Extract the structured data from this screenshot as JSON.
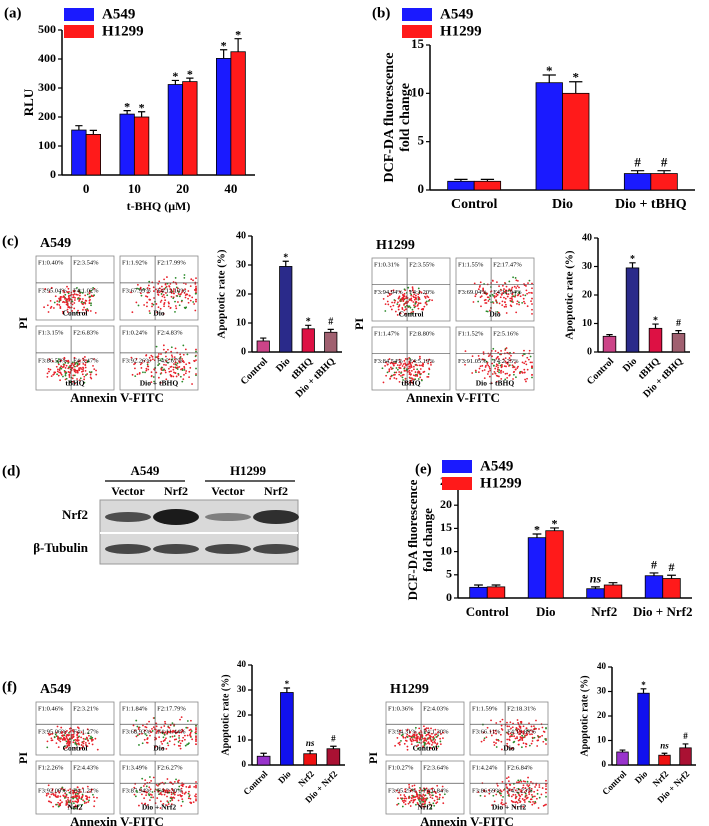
{
  "panel_labels": [
    "(a)",
    "(b)",
    "(c)",
    "(d)",
    "(e)",
    "(f)"
  ],
  "chart_data": [
    {
      "type": "bar",
      "ylabel": "RLU",
      "xlabel": "t-BHQ (μM)",
      "categories": [
        "0",
        "10",
        "20",
        "40"
      ],
      "series": [
        {
          "name": "A549",
          "color": "#1a1aff",
          "values": [
            155,
            210,
            312,
            402
          ],
          "errors": [
            15,
            12,
            14,
            30
          ],
          "marks": [
            null,
            "*",
            "*",
            "*"
          ]
        },
        {
          "name": "H1299",
          "color": "#ff1a1a",
          "values": [
            140,
            200,
            322,
            425
          ],
          "errors": [
            14,
            18,
            12,
            45
          ],
          "marks": [
            null,
            "*",
            "*",
            "*"
          ]
        }
      ],
      "ylim": [
        0,
        500
      ],
      "yticks": [
        0,
        100,
        200,
        300,
        400,
        500
      ],
      "legend": "top-left"
    },
    {
      "type": "bar",
      "ylabel": [
        "DCF-DA fluorescence",
        "fold change"
      ],
      "categories": [
        "Control",
        "Dio",
        "Dio + tBHQ"
      ],
      "series": [
        {
          "name": "A549",
          "color": "#1a1aff",
          "values": [
            0.9,
            11.1,
            1.7
          ],
          "errors": [
            0.2,
            0.8,
            0.3
          ],
          "marks": [
            null,
            "*",
            "#"
          ]
        },
        {
          "name": "H1299",
          "color": "#ff1a1a",
          "values": [
            0.9,
            10.0,
            1.7
          ],
          "errors": [
            0.2,
            1.2,
            0.3
          ],
          "marks": [
            null,
            "*",
            "#"
          ]
        }
      ],
      "ylim": [
        0,
        15
      ],
      "yticks": [
        0,
        5,
        10,
        15
      ],
      "legend": "top-left"
    },
    {
      "type": "bar",
      "ylabel": "Apoptotic rate (%)",
      "categories": [
        "Control",
        "Dio",
        "tBHQ",
        "Dio + tBHQ"
      ],
      "values": [
        3.8,
        29.5,
        8.0,
        6.8
      ],
      "errors": [
        1.0,
        1.8,
        1.2,
        1.0
      ],
      "colors": [
        "#cc4488",
        "#2a2a8a",
        "#dd1144",
        "#a06070"
      ],
      "marks": [
        null,
        "*",
        "*",
        "#"
      ],
      "ylim": [
        0,
        40
      ],
      "yticks": [
        0,
        10,
        20,
        30,
        40
      ]
    },
    {
      "type": "bar",
      "ylabel": "Apoptotic rate (%)",
      "categories": [
        "Control",
        "Dio",
        "tBHQ",
        "Dio + tBHQ"
      ],
      "values": [
        5.5,
        29.5,
        8.3,
        6.5
      ],
      "errors": [
        0.6,
        1.8,
        1.5,
        1.0
      ],
      "colors": [
        "#cc4488",
        "#2a2a8a",
        "#dd1144",
        "#a06070"
      ],
      "marks": [
        null,
        "*",
        "*",
        "#"
      ],
      "ylim": [
        0,
        40
      ],
      "yticks": [
        0,
        10,
        20,
        30,
        40
      ]
    },
    {
      "type": "bar",
      "ylabel": [
        "DCF-DA fluorescence",
        "fold change"
      ],
      "categories": [
        "Control",
        "Dio",
        "Nrf2",
        "Dio + Nrf2"
      ],
      "series": [
        {
          "name": "A549",
          "color": "#1a1aff",
          "values": [
            2.3,
            13.0,
            2.0,
            4.8
          ],
          "errors": [
            0.5,
            0.8,
            0.4,
            0.6
          ],
          "marks": [
            null,
            "*",
            "ns",
            "#"
          ]
        },
        {
          "name": "H1299",
          "color": "#ff1a1a",
          "values": [
            2.4,
            14.5,
            2.8,
            4.2
          ],
          "errors": [
            0.4,
            0.6,
            0.5,
            0.7
          ],
          "marks": [
            null,
            "*",
            null,
            "#"
          ]
        }
      ],
      "ylim": [
        0,
        25
      ],
      "yticks": [
        0,
        5,
        10,
        15,
        20,
        25
      ],
      "legend": "top-left"
    },
    {
      "type": "bar",
      "ylabel": "Apoptotic rate (%)",
      "categories": [
        "Control",
        "Dio",
        "Nrf2",
        "Dio + Nrf2"
      ],
      "values": [
        3.5,
        29.0,
        4.5,
        6.5
      ],
      "errors": [
        1.2,
        1.8,
        1.2,
        1.0
      ],
      "colors": [
        "#9933cc",
        "#1111ee",
        "#ee1111",
        "#aa1133"
      ],
      "marks": [
        null,
        "*",
        "ns",
        "#"
      ],
      "ylim": [
        0,
        40
      ],
      "yticks": [
        0,
        10,
        20,
        30,
        40
      ]
    },
    {
      "type": "bar",
      "ylabel": "Apoptotic rate (%)",
      "categories": [
        "Control",
        "Dio",
        "Nrf2",
        "Dio + Nrf2"
      ],
      "values": [
        5.3,
        29.3,
        4.0,
        7.0
      ],
      "errors": [
        0.8,
        1.8,
        0.8,
        1.6
      ],
      "colors": [
        "#9933cc",
        "#1111ee",
        "#ee1111",
        "#aa1133"
      ],
      "marks": [
        null,
        "*",
        "ns",
        "#"
      ],
      "ylim": [
        0,
        40
      ],
      "yticks": [
        0,
        10,
        20,
        30,
        40
      ]
    }
  ],
  "flow_cytometry": [
    {
      "title": "A549",
      "ylabel": "PI",
      "xlabel": "Annexin V-FITC",
      "plots": [
        {
          "label": "Control",
          "quadrants": [
            "F1:0.40%",
            "F2:3.54%",
            "F3:95.04%",
            "F4:1.02%"
          ]
        },
        {
          "label": "Dio",
          "quadrants": [
            "F1:1.92%",
            "F2:17.99%",
            "F3:67.99%",
            "F4:12.10%"
          ]
        },
        {
          "label": "tBHQ",
          "quadrants": [
            "F1:3.15%",
            "F2:6.83%",
            "F3:86.54%",
            "F4:3.47%"
          ]
        },
        {
          "label": "Dio + tBHQ",
          "quadrants": [
            "F1:0.24%",
            "F2:4.83%",
            "F3:92.26%",
            "F4:2.67%"
          ]
        }
      ]
    },
    {
      "title": "H1299",
      "ylabel": "PI",
      "xlabel": "Annexin V-FITC",
      "plots": [
        {
          "label": "Control",
          "quadrants": [
            "F1:0.31%",
            "F2:3.55%",
            "F3:94.94%",
            "F4:1.20%"
          ]
        },
        {
          "label": "Dio",
          "quadrants": [
            "F1:1.55%",
            "F2:17.47%",
            "F3:69.04%",
            "F4:11.94%"
          ]
        },
        {
          "label": "tBHQ",
          "quadrants": [
            "F1:1.47%",
            "F2:8.80%",
            "F3:84.54%",
            "F4:5.19%"
          ]
        },
        {
          "label": "Dio + tBHQ",
          "quadrants": [
            "F1:1.52%",
            "F2:5.16%",
            "F3:91.05%",
            "F4:2.25%"
          ]
        }
      ]
    },
    {
      "title": "A549",
      "ylabel": "PI",
      "xlabel": "Annexin V-FITC",
      "plots": [
        {
          "label": "Control",
          "quadrants": [
            "F1:0.46%",
            "F2:3.21%",
            "F3:95.06%",
            "F4:1.27%"
          ]
        },
        {
          "label": "Dio",
          "quadrants": [
            "F1:1.84%",
            "F2:17.79%",
            "F3:68.93%",
            "F4:11.44%"
          ]
        },
        {
          "label": "Nrf2",
          "quadrants": [
            "F1:2.26%",
            "F2:4.43%",
            "F3:92.09%",
            "F4:1.21%"
          ]
        },
        {
          "label": "Dio + Nrf2",
          "quadrants": [
            "F1:3.49%",
            "F2:6.27%",
            "F3:87.94%",
            "F4:2.30%"
          ]
        }
      ]
    },
    {
      "title": "H1299",
      "ylabel": "PI",
      "xlabel": "Annexin V-FITC",
      "plots": [
        {
          "label": "Control",
          "quadrants": [
            "F1:0.36%",
            "F2:4.03%",
            "F3:94.31%",
            "F4:1.30%"
          ]
        },
        {
          "label": "Dio",
          "quadrants": [
            "F1:1.59%",
            "F2:18.31%",
            "F3:66.11%",
            "F4:13.89%"
          ]
        },
        {
          "label": "Nrf2",
          "quadrants": [
            "F1:0.27%",
            "F2:3.64%",
            "F3:95.25%",
            "F4:0.84%"
          ]
        },
        {
          "label": "Dio + Nrf2",
          "quadrants": [
            "F1:4.24%",
            "F2:6.84%",
            "F3:86.69%",
            "F4:2.23%"
          ]
        }
      ]
    }
  ],
  "western_blot": {
    "groups": [
      "A549",
      "H1299"
    ],
    "lanes": [
      "Vector",
      "Nrf2",
      "Vector",
      "Nrf2"
    ],
    "rows": [
      "Nrf2",
      "β-Tubulin"
    ]
  }
}
